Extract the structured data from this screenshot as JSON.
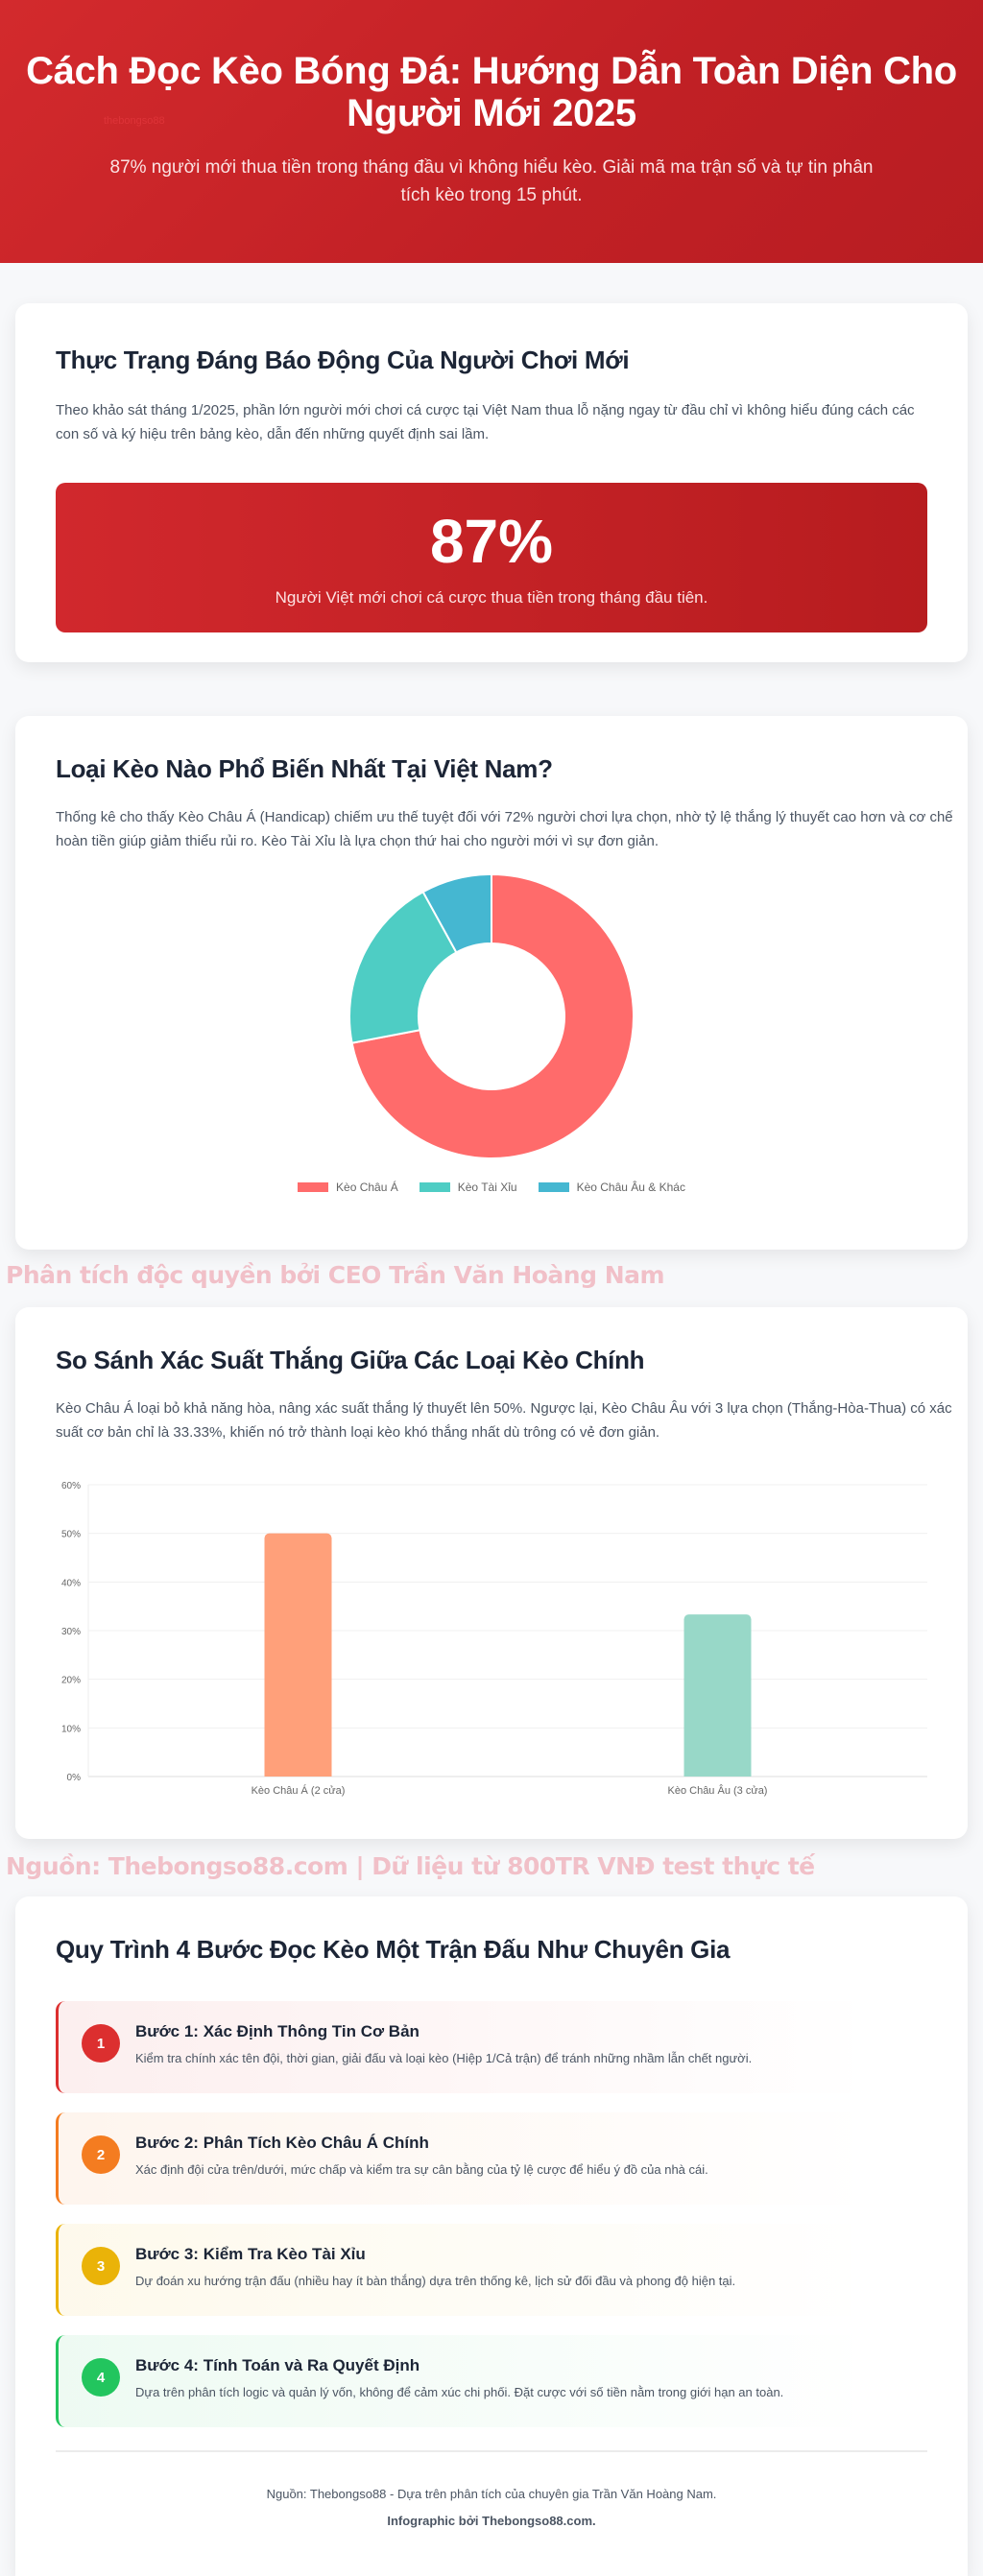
{
  "hero": {
    "title": "Cách Đọc Kèo Bóng Đá: Hướng Dẫn Toàn Diện Cho Người Mới 2025",
    "subtitle": "87% người mới thua tiền trong tháng đầu vì không hiểu kèo. Giải mã ma trận số và tự tin phân tích kèo trong 15 phút.",
    "ghost_logo": "thebongso88"
  },
  "section1": {
    "title": "Thực Trạng Đáng Báo Động Của Người Chơi Mới",
    "description": "Theo khảo sát tháng 1/2025, phần lớn người mới chơi cá cược tại Việt Nam thua lỗ nặng ngay từ đầu chỉ vì không hiểu đúng cách các con số và ký hiệu trên bảng kèo, dẫn đến những quyết định sai lầm.",
    "stat_value": "87%",
    "stat_caption": "Người Việt mới chơi cá cược thua tiền trong tháng đầu tiên."
  },
  "section2": {
    "title": "Loại Kèo Nào Phổ Biến Nhất Tại Việt Nam?",
    "description": "Thống kê cho thấy Kèo Châu Á (Handicap) chiếm ưu thế tuyệt đối với 72% người chơi lựa chọn, nhờ tỷ lệ thắng lý thuyết cao hơn và cơ chế hoàn tiền giúp giảm thiểu rủi ro. Kèo Tài Xỉu là lựa chọn thứ hai cho người mới vì sự đơn giản."
  },
  "watermarks": {
    "wm1": "Phân tích độc quyền bởi CEO Trần Văn Hoàng Nam",
    "wm2": "Nguồn: Thebongso88.com | Dữ liệu từ 800TR VNĐ test thực tế"
  },
  "section3": {
    "title": "So Sánh Xác Suất Thắng Giữa Các Loại Kèo Chính",
    "description": "Kèo Châu Á loại bỏ khả năng hòa, nâng xác suất thắng lý thuyết lên 50%. Ngược lại, Kèo Châu Âu với 3 lựa chọn (Thắng-Hòa-Thua) có xác suất cơ bản chỉ là 33.33%, khiến nó trở thành loại kèo khó thắng nhất dù trông có vẻ đơn giản."
  },
  "section4": {
    "title": "Quy Trình 4 Bước Đọc Kèo Một Trận Đấu Như Chuyên Gia",
    "steps": [
      {
        "num": "1",
        "title": "Bước 1: Xác Định Thông Tin Cơ Bản",
        "text": "Kiểm tra chính xác tên đội, thời gian, giải đấu và loại kèo (Hiệp 1/Cả trận) để tránh những nhầm lẫn chết người.",
        "color": "#dc2f2f"
      },
      {
        "num": "2",
        "title": "Bước 2: Phân Tích Kèo Châu Á Chính",
        "text": "Xác định đội cửa trên/dưới, mức chấp và kiểm tra sự cân bằng của tỷ lệ cược để hiểu ý đồ của nhà cái.",
        "color": "#f47c20"
      },
      {
        "num": "3",
        "title": "Bước 3: Kiểm Tra Kèo Tài Xỉu",
        "text": "Dự đoán xu hướng trận đấu (nhiều hay ít bàn thắng) dựa trên thống kê, lịch sử đối đầu và phong độ hiện tại.",
        "color": "#eab308"
      },
      {
        "num": "4",
        "title": "Bước 4: Tính Toán và Ra Quyết Định",
        "text": "Dựa trên phân tích logic và quản lý vốn, không để cảm xúc chi phối. Đặt cược với số tiền nằm trong giới hạn an toàn.",
        "color": "#22c55e"
      }
    ],
    "footer_source": "Nguồn: Thebongso88 - Dựa trên phân tích của chuyên gia Trần Văn Hoàng Nam.",
    "footer_credit": "Infographic bởi Thebongso88.com."
  },
  "chart_data": [
    {
      "type": "pie",
      "variant": "doughnut",
      "categories": [
        "Kèo Châu Á",
        "Kèo Tài Xỉu",
        "Kèo Châu Âu & Khác"
      ],
      "values": [
        72,
        20,
        8
      ],
      "colors": [
        "#ff6b6b",
        "#4ecdc4",
        "#45b7d1"
      ],
      "legend_position": "bottom"
    },
    {
      "type": "bar",
      "categories": [
        "Kèo Châu Á (2 cửa)",
        "Kèo Châu Âu (3 cửa)"
      ],
      "values": [
        50,
        33.33
      ],
      "colors": [
        "#ffa07a",
        "#98d8c8"
      ],
      "ylim": [
        0,
        60
      ],
      "yticks": [
        "0%",
        "10%",
        "20%",
        "30%",
        "40%",
        "50%",
        "60%"
      ],
      "grid": true,
      "legend": false
    }
  ]
}
